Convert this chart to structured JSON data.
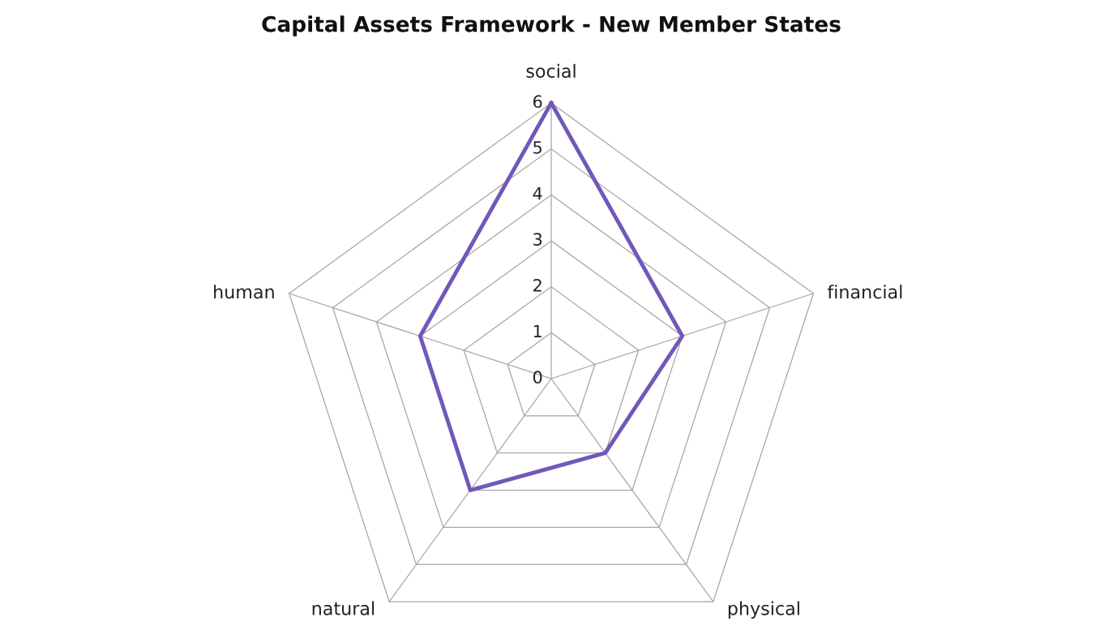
{
  "chart_data": {
    "type": "radar",
    "title": "Capital Assets Framework - New Member States",
    "categories": [
      "social",
      "financial",
      "physical",
      "natural",
      "human"
    ],
    "series": [
      {
        "color": "#7158b8",
        "values": [
          6,
          3,
          2,
          3,
          3
        ]
      }
    ],
    "ylim": [
      0,
      6
    ],
    "yticks": [
      0,
      1,
      2,
      3,
      4,
      5,
      6
    ],
    "grid": true,
    "marker": "none"
  }
}
